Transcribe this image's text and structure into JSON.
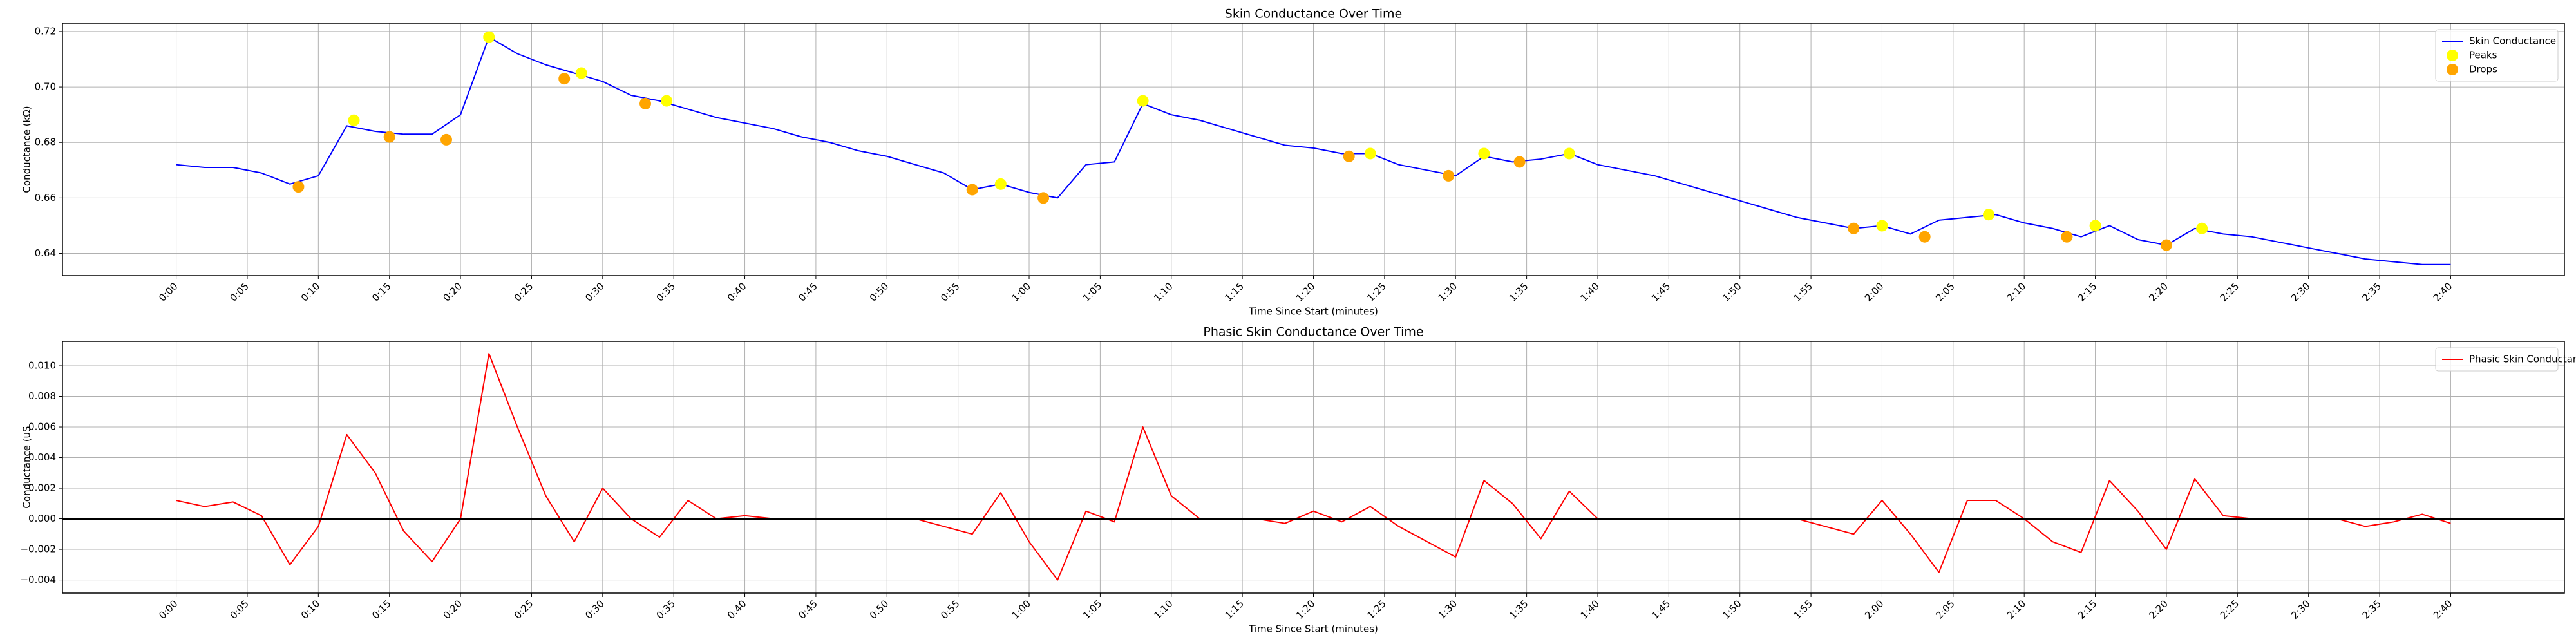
{
  "chart_data": [
    {
      "type": "line",
      "title": "Skin Conductance Over Time",
      "xlabel": "Time Since Start (minutes)",
      "ylabel": "Conductance (kΩ)",
      "xlim": [
        -8,
        168
      ],
      "ylim": [
        0.632,
        0.723
      ],
      "grid": true,
      "legend": "upper right",
      "xticks": [
        {
          "value": 0,
          "label": "0:00"
        },
        {
          "value": 5,
          "label": "0:05"
        },
        {
          "value": 10,
          "label": "0:10"
        },
        {
          "value": 15,
          "label": "0:15"
        },
        {
          "value": 20,
          "label": "0:20"
        },
        {
          "value": 25,
          "label": "0:25"
        },
        {
          "value": 30,
          "label": "0:30"
        },
        {
          "value": 35,
          "label": "0:35"
        },
        {
          "value": 40,
          "label": "0:40"
        },
        {
          "value": 45,
          "label": "0:45"
        },
        {
          "value": 50,
          "label": "0:50"
        },
        {
          "value": 55,
          "label": "0:55"
        },
        {
          "value": 60,
          "label": "1:00"
        },
        {
          "value": 65,
          "label": "1:05"
        },
        {
          "value": 70,
          "label": "1:10"
        },
        {
          "value": 75,
          "label": "1:15"
        },
        {
          "value": 80,
          "label": "1:20"
        },
        {
          "value": 85,
          "label": "1:25"
        },
        {
          "value": 90,
          "label": "1:30"
        },
        {
          "value": 95,
          "label": "1:35"
        },
        {
          "value": 100,
          "label": "1:40"
        },
        {
          "value": 105,
          "label": "1:45"
        },
        {
          "value": 110,
          "label": "1:50"
        },
        {
          "value": 115,
          "label": "1:55"
        },
        {
          "value": 120,
          "label": "2:00"
        },
        {
          "value": 125,
          "label": "2:05"
        },
        {
          "value": 130,
          "label": "2:10"
        },
        {
          "value": 135,
          "label": "2:15"
        },
        {
          "value": 140,
          "label": "2:20"
        },
        {
          "value": 145,
          "label": "2:25"
        },
        {
          "value": 150,
          "label": "2:30"
        },
        {
          "value": 155,
          "label": "2:35"
        },
        {
          "value": 160,
          "label": "2:40"
        }
      ],
      "yticks": [
        0.64,
        0.66,
        0.68,
        {
          "value": 0.7,
          "label": "0.70"
        },
        0.72
      ],
      "series": [
        {
          "name": "Skin Conductance",
          "type": "line",
          "color": "#0000ff",
          "x": [
            0,
            2,
            4,
            6,
            8,
            10,
            12,
            14,
            16,
            18,
            20,
            22,
            24,
            26,
            28,
            30,
            32,
            34,
            36,
            38,
            40,
            42,
            44,
            46,
            48,
            50,
            52,
            54,
            56,
            58,
            60,
            62,
            64,
            66,
            68,
            70,
            72,
            74,
            76,
            78,
            80,
            82,
            84,
            86,
            88,
            90,
            92,
            94,
            96,
            98,
            100,
            102,
            104,
            106,
            108,
            110,
            112,
            114,
            116,
            118,
            120,
            122,
            124,
            126,
            128,
            130,
            132,
            134,
            136,
            138,
            140,
            142,
            144,
            146,
            148,
            150,
            152,
            154,
            156,
            158,
            160
          ],
          "values": [
            0.672,
            0.671,
            0.671,
            0.669,
            0.665,
            0.668,
            0.686,
            0.684,
            0.683,
            0.683,
            0.69,
            0.718,
            0.712,
            0.708,
            0.705,
            0.702,
            0.697,
            0.695,
            0.692,
            0.689,
            0.687,
            0.685,
            0.682,
            0.68,
            0.677,
            0.675,
            0.672,
            0.669,
            0.663,
            0.665,
            0.662,
            0.66,
            0.672,
            0.673,
            0.694,
            0.69,
            0.688,
            0.685,
            0.682,
            0.679,
            0.678,
            0.676,
            0.676,
            0.672,
            0.67,
            0.668,
            0.675,
            0.673,
            0.674,
            0.676,
            0.672,
            0.67,
            0.668,
            0.665,
            0.662,
            0.659,
            0.656,
            0.653,
            0.651,
            0.649,
            0.65,
            0.647,
            0.652,
            0.653,
            0.654,
            0.651,
            0.649,
            0.646,
            0.65,
            0.645,
            0.643,
            0.649,
            0.647,
            0.646,
            0.644,
            0.642,
            0.64,
            0.638,
            0.637,
            0.636,
            0.636
          ]
        },
        {
          "name": "Peaks",
          "type": "scatter",
          "color": "#ffff00",
          "x": [
            12.5,
            22,
            28.5,
            34.5,
            58,
            68,
            84,
            92,
            98,
            120,
            127.5,
            135,
            142.5
          ],
          "values": [
            0.688,
            0.718,
            0.705,
            0.695,
            0.665,
            0.695,
            0.676,
            0.676,
            0.676,
            0.65,
            0.654,
            0.65,
            0.649
          ]
        },
        {
          "name": "Drops",
          "type": "scatter",
          "color": "#ffa500",
          "x": [
            8.6,
            15,
            19,
            27.3,
            33,
            56,
            61,
            82.5,
            89.5,
            94.5,
            118,
            123,
            133,
            140
          ],
          "values": [
            0.664,
            0.682,
            0.681,
            0.703,
            0.694,
            0.663,
            0.66,
            0.675,
            0.668,
            0.673,
            0.649,
            0.646,
            0.646,
            0.643
          ]
        }
      ]
    },
    {
      "type": "line",
      "title": "Phasic Skin Conductance Over Time",
      "xlabel": "Time Since Start (minutes)",
      "ylabel": "Conductance (uS",
      "xlim": [
        -8,
        168
      ],
      "ylim": [
        -0.00486,
        0.0116
      ],
      "grid": true,
      "legend": "upper right",
      "hlines": [
        {
          "value": 0,
          "color": "#000000"
        }
      ],
      "xticks": [
        {
          "value": 0,
          "label": "0:00"
        },
        {
          "value": 5,
          "label": "0:05"
        },
        {
          "value": 10,
          "label": "0:10"
        },
        {
          "value": 15,
          "label": "0:15"
        },
        {
          "value": 20,
          "label": "0:20"
        },
        {
          "value": 25,
          "label": "0:25"
        },
        {
          "value": 30,
          "label": "0:30"
        },
        {
          "value": 35,
          "label": "0:35"
        },
        {
          "value": 40,
          "label": "0:40"
        },
        {
          "value": 45,
          "label": "0:45"
        },
        {
          "value": 50,
          "label": "0:50"
        },
        {
          "value": 55,
          "label": "0:55"
        },
        {
          "value": 60,
          "label": "1:00"
        },
        {
          "value": 65,
          "label": "1:05"
        },
        {
          "value": 70,
          "label": "1:10"
        },
        {
          "value": 75,
          "label": "1:15"
        },
        {
          "value": 80,
          "label": "1:20"
        },
        {
          "value": 85,
          "label": "1:25"
        },
        {
          "value": 90,
          "label": "1:30"
        },
        {
          "value": 95,
          "label": "1:35"
        },
        {
          "value": 100,
          "label": "1:40"
        },
        {
          "value": 105,
          "label": "1:45"
        },
        {
          "value": 110,
          "label": "1:50"
        },
        {
          "value": 115,
          "label": "1:55"
        },
        {
          "value": 120,
          "label": "2:00"
        },
        {
          "value": 125,
          "label": "2:05"
        },
        {
          "value": 130,
          "label": "2:10"
        },
        {
          "value": 135,
          "label": "2:15"
        },
        {
          "value": 140,
          "label": "2:20"
        },
        {
          "value": 145,
          "label": "2:25"
        },
        {
          "value": 150,
          "label": "2:30"
        },
        {
          "value": 155,
          "label": "2:35"
        },
        {
          "value": 160,
          "label": "2:40"
        }
      ],
      "yticks": [
        {
          "value": -0.004,
          "label": "−0.004"
        },
        {
          "value": -0.002,
          "label": "−0.002"
        },
        {
          "value": 0,
          "label": "0.000"
        },
        0.002,
        0.004,
        0.006,
        0.008,
        {
          "value": 0.01,
          "label": "0.010"
        }
      ],
      "series": [
        {
          "name": "Phasic Skin Conductance",
          "type": "line",
          "color": "#ff0000",
          "x": [
            0,
            2,
            4,
            6,
            8,
            10,
            12,
            14,
            16,
            18,
            20,
            22,
            24,
            26,
            28,
            30,
            32,
            34,
            36,
            38,
            40,
            42,
            44,
            46,
            48,
            50,
            52,
            54,
            56,
            58,
            60,
            62,
            64,
            66,
            68,
            70,
            72,
            74,
            76,
            78,
            80,
            82,
            84,
            86,
            88,
            90,
            92,
            94,
            96,
            98,
            100,
            102,
            104,
            106,
            108,
            110,
            112,
            114,
            116,
            118,
            120,
            122,
            124,
            126,
            128,
            130,
            132,
            134,
            136,
            138,
            140,
            142,
            144,
            146,
            148,
            150,
            152,
            154,
            156,
            158,
            160
          ],
          "values": [
            0.0012,
            0.0008,
            0.0011,
            0.0002,
            -0.003,
            -0.0005,
            0.0055,
            0.003,
            -0.0008,
            -0.0028,
            0,
            0.0108,
            0.006,
            0.0015,
            -0.0015,
            0.002,
            0,
            -0.0012,
            0.0012,
            0,
            0.0002,
            0,
            0,
            0,
            0,
            0,
            0,
            -0.0005,
            -0.001,
            0.0017,
            -0.0015,
            -0.004,
            0.0005,
            -0.0002,
            0.006,
            0.0015,
            0,
            0,
            0,
            -0.0003,
            0.0005,
            -0.0002,
            0.0008,
            -0.0005,
            -0.0015,
            -0.0025,
            0.0025,
            0.001,
            -0.0013,
            0.0018,
            0,
            0,
            0,
            0,
            0,
            0,
            0,
            0,
            -0.0005,
            -0.001,
            0.0012,
            -0.001,
            -0.0035,
            0.0012,
            0.0012,
            0,
            -0.0015,
            -0.0022,
            0.0025,
            0.0005,
            -0.002,
            0.0026,
            0.0002,
            0,
            0,
            0,
            0,
            -0.0005,
            -0.0002,
            0.0003,
            -0.0003
          ]
        }
      ]
    }
  ]
}
